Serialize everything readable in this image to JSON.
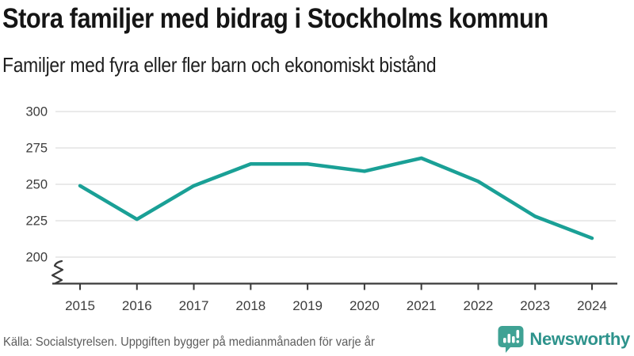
{
  "header": {
    "title": "Stora familjer med bidrag i Stockholms kommun",
    "subtitle": "Familjer med fyra eller fler barn och ekonomiskt bistånd"
  },
  "chart_data": {
    "type": "line",
    "title": "Stora familjer med bidrag i Stockholms kommun",
    "subtitle": "Familjer med fyra eller fler barn och ekonomiskt bistånd",
    "categories": [
      "2015",
      "2016",
      "2017",
      "2018",
      "2019",
      "2020",
      "2021",
      "2022",
      "2023",
      "2024"
    ],
    "values": [
      249,
      226,
      249,
      264,
      264,
      259,
      268,
      252,
      228,
      213
    ],
    "xlabel": "",
    "ylabel": "",
    "ylim": [
      200,
      300
    ],
    "yticks": [
      200,
      225,
      250,
      275,
      300
    ],
    "axis_break": true,
    "grid": "horizontal",
    "legend": "none",
    "line_color": "#1AA096"
  },
  "footer": {
    "source": "Källa: Socialstyrelsen. Uppgiften bygger på medianmånaden för varje år",
    "brand": "Newsworthy"
  },
  "colors": {
    "accent_line": "#1AA096",
    "logo": "#3FA294",
    "logo_text": "#2E938C",
    "gridline": "#E3E3E3",
    "axis": "#3A3A3A"
  }
}
